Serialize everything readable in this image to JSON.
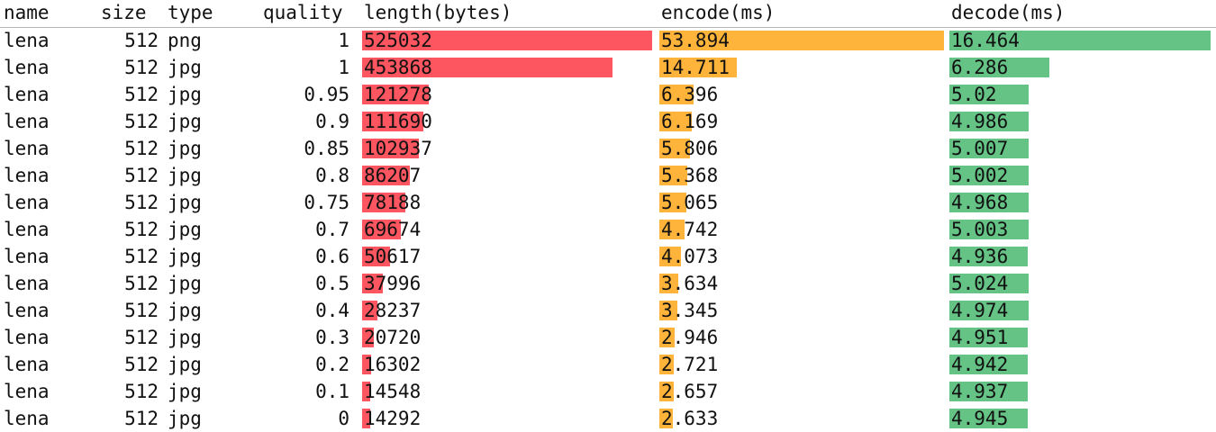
{
  "chart_data": {
    "type": "table",
    "columns": [
      "name",
      "size",
      "type",
      "quality",
      "length(bytes)",
      "encode(ms)",
      "decode(ms)"
    ],
    "colors": {
      "length": "#fd5660",
      "encode": "#feb43a",
      "decode": "#65c386"
    },
    "rows": [
      {
        "name": "lena",
        "size": "512",
        "type": "png",
        "quality": "1",
        "length": "525032",
        "encode": "53.894",
        "decode": "16.464"
      },
      {
        "name": "lena",
        "size": "512",
        "type": "jpg",
        "quality": "1",
        "length": "453868",
        "encode": "14.711",
        "decode": "6.286"
      },
      {
        "name": "lena",
        "size": "512",
        "type": "jpg",
        "quality": "0.95",
        "length": "121278",
        "encode": "6.396",
        "decode": "5.02"
      },
      {
        "name": "lena",
        "size": "512",
        "type": "jpg",
        "quality": "0.9",
        "length": "111690",
        "encode": "6.169",
        "decode": "4.986"
      },
      {
        "name": "lena",
        "size": "512",
        "type": "jpg",
        "quality": "0.85",
        "length": "102937",
        "encode": "5.806",
        "decode": "5.007"
      },
      {
        "name": "lena",
        "size": "512",
        "type": "jpg",
        "quality": "0.8",
        "length": "86207",
        "encode": "5.368",
        "decode": "5.002"
      },
      {
        "name": "lena",
        "size": "512",
        "type": "jpg",
        "quality": "0.75",
        "length": "78188",
        "encode": "5.065",
        "decode": "4.968"
      },
      {
        "name": "lena",
        "size": "512",
        "type": "jpg",
        "quality": "0.7",
        "length": "69674",
        "encode": "4.742",
        "decode": "5.003"
      },
      {
        "name": "lena",
        "size": "512",
        "type": "jpg",
        "quality": "0.6",
        "length": "50617",
        "encode": "4.073",
        "decode": "4.936"
      },
      {
        "name": "lena",
        "size": "512",
        "type": "jpg",
        "quality": "0.5",
        "length": "37996",
        "encode": "3.634",
        "decode": "5.024"
      },
      {
        "name": "lena",
        "size": "512",
        "type": "jpg",
        "quality": "0.4",
        "length": "28237",
        "encode": "3.345",
        "decode": "4.974"
      },
      {
        "name": "lena",
        "size": "512",
        "type": "jpg",
        "quality": "0.3",
        "length": "20720",
        "encode": "2.946",
        "decode": "4.951"
      },
      {
        "name": "lena",
        "size": "512",
        "type": "jpg",
        "quality": "0.2",
        "length": "16302",
        "encode": "2.721",
        "decode": "4.942"
      },
      {
        "name": "lena",
        "size": "512",
        "type": "jpg",
        "quality": "0.1",
        "length": "14548",
        "encode": "2.657",
        "decode": "4.937"
      },
      {
        "name": "lena",
        "size": "512",
        "type": "jpg",
        "quality": "0",
        "length": "14292",
        "encode": "2.633",
        "decode": "4.945"
      }
    ]
  }
}
